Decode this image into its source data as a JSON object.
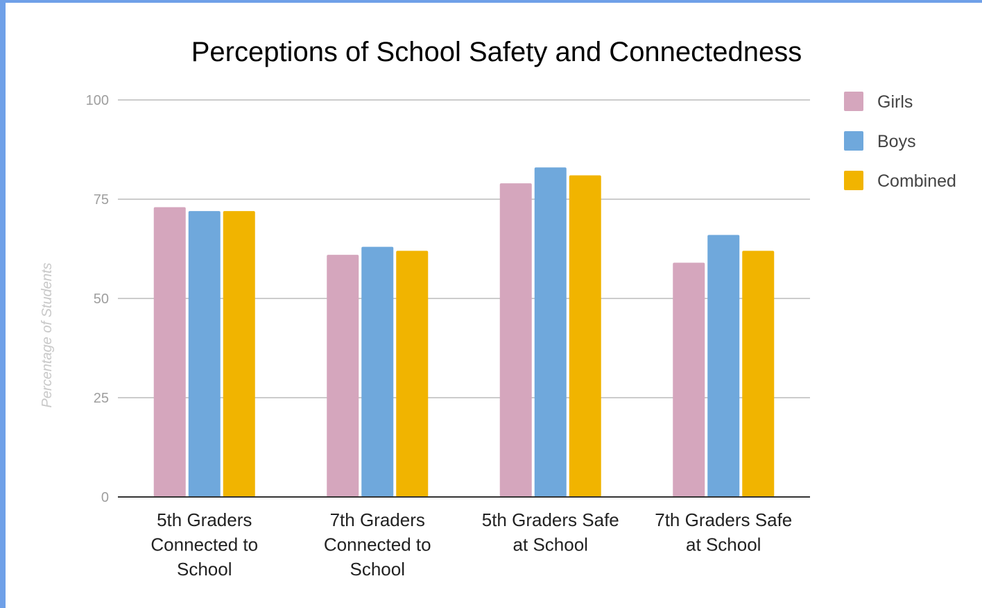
{
  "chart_data": {
    "type": "bar",
    "title": "Perceptions of School Safety and Connectedness",
    "ylabel": "Percentage of Students",
    "xlabel": "",
    "ylim": [
      0,
      100
    ],
    "yticks": [
      0,
      25,
      50,
      75,
      100
    ],
    "grid": true,
    "legend_position": "right",
    "categories": [
      "5th Graders Connected to School",
      "7th Graders Connected to School",
      "5th Graders Safe at School",
      "7th Graders Safe at School"
    ],
    "category_lines": [
      [
        "5th Graders",
        "Connected to",
        "School"
      ],
      [
        "7th Graders",
        "Connected to",
        "School"
      ],
      [
        "5th Graders Safe",
        "at School"
      ],
      [
        "7th Graders Safe",
        "at School"
      ]
    ],
    "series": [
      {
        "name": "Girls",
        "color": "#d5a6bd",
        "values": [
          73,
          61,
          79,
          59
        ]
      },
      {
        "name": "Boys",
        "color": "#6fa8dc",
        "values": [
          72,
          63,
          83,
          66
        ]
      },
      {
        "name": "Combined",
        "color": "#f1b400",
        "values": [
          72,
          62,
          81,
          62
        ]
      }
    ]
  }
}
